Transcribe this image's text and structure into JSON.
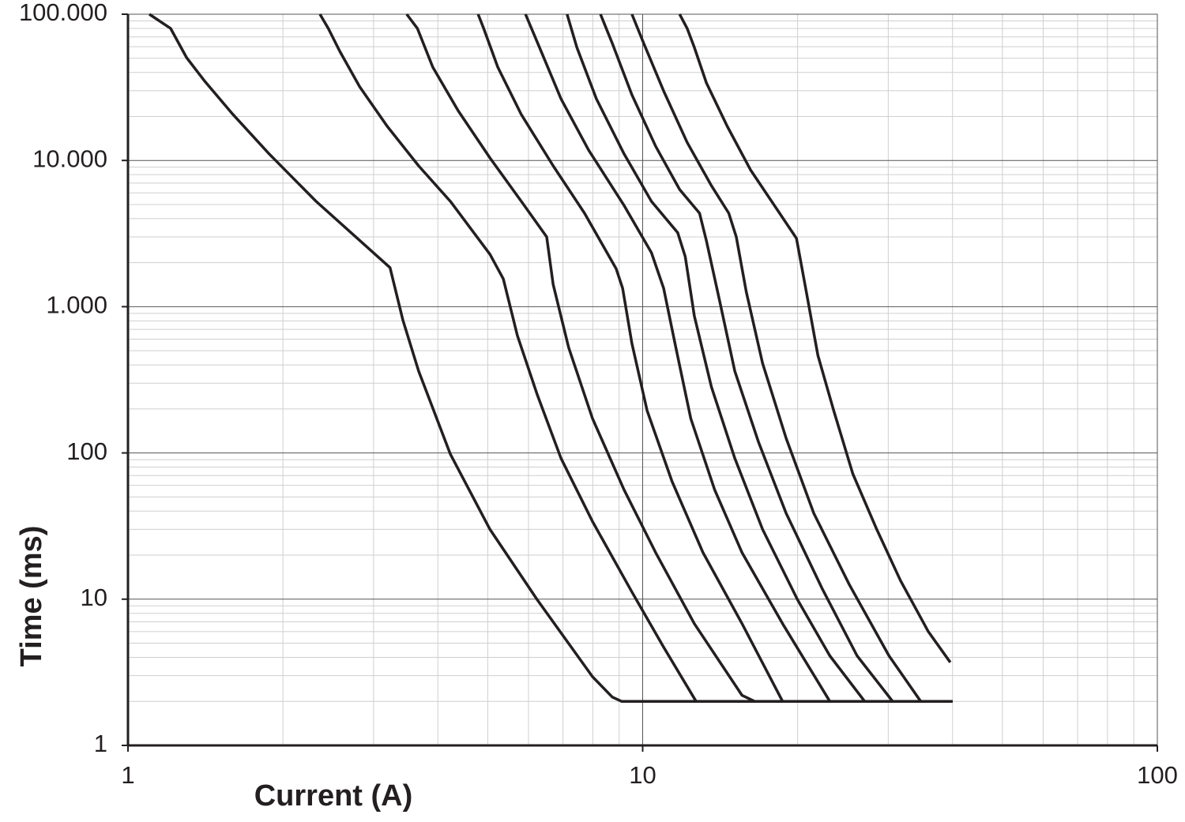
{
  "chart_data": {
    "type": "line",
    "x_label": "Current (A)",
    "y_label": "Time (ms)",
    "xscale": "log",
    "yscale": "log",
    "grid": true,
    "minor_grid": true,
    "xlim": [
      1,
      100
    ],
    "xticks": [
      1,
      10,
      100
    ],
    "ylim": [
      1,
      100000
    ],
    "yticks": [
      1,
      10,
      100,
      {
        "value": 1000,
        "label": "1.000"
      },
      {
        "value": 10000,
        "label": "10.000"
      },
      {
        "value": 100000,
        "label": "100.000"
      }
    ],
    "series": [
      {
        "color": "#231f20",
        "x": [
          1.1,
          1.21,
          1.3,
          1.41,
          1.6,
          1.88,
          2.32,
          3.23,
          3.42,
          3.67,
          4.23,
          5.05,
          6.24,
          7.99,
          8.73,
          9.1,
          40
        ],
        "values": [
          100000,
          80000,
          50500,
          34800,
          20600,
          11100,
          5250,
          1850,
          813,
          363,
          98,
          30,
          9.9,
          2.95,
          2.14,
          2,
          2
        ]
      },
      {
        "color": "#231f20",
        "x": [
          2.36,
          2.45,
          2.58,
          2.82,
          3.19,
          3.67,
          4.23,
          5.05,
          5.36,
          5.71,
          6.24,
          6.94,
          7.99,
          9.53,
          10.98,
          12.7,
          40
        ],
        "values": [
          100000,
          80000,
          55700,
          31900,
          17100,
          9190,
          5250,
          2280,
          1550,
          635,
          250,
          92,
          34,
          11.2,
          4.7,
          2,
          2
        ]
      },
      {
        "color": "#231f20",
        "x": [
          3.48,
          3.65,
          3.91,
          4.38,
          5.05,
          5.81,
          6.51,
          6.7,
          7.18,
          7.99,
          9.2,
          10.6,
          12.6,
          15.6,
          16.5,
          40
        ],
        "values": [
          100000,
          80000,
          43500,
          21900,
          10400,
          5250,
          3000,
          1420,
          526,
          172,
          56,
          20.8,
          6.8,
          2.2,
          2,
          2
        ]
      },
      {
        "color": "#231f20",
        "x": [
          4.79,
          4.91,
          5.23,
          5.81,
          6.7,
          7.71,
          8.88,
          9.14,
          9.53,
          10.2,
          11.4,
          13.1,
          15.6,
          18.7,
          40
        ],
        "values": [
          100000,
          80000,
          43500,
          20600,
          9190,
          4360,
          1820,
          1340,
          560,
          195,
          64,
          20.8,
          6.8,
          2,
          2
        ]
      },
      {
        "color": "#231f20",
        "x": [
          5.92,
          6.35,
          6.94,
          7.85,
          9.2,
          10.4,
          10.98,
          11.6,
          12.4,
          13.8,
          15.6,
          18.7,
          23.1,
          40
        ],
        "values": [
          100000,
          55700,
          26400,
          11800,
          4930,
          2340,
          1340,
          526,
          172,
          56,
          20.8,
          6.8,
          2,
          2
        ]
      },
      {
        "color": "#231f20",
        "x": [
          7.13,
          7.45,
          8.13,
          9.2,
          10.4,
          11.7,
          12.1,
          12.6,
          13.6,
          15.1,
          17.1,
          20.0,
          23.1,
          27.0,
          40
        ],
        "values": [
          100000,
          59300,
          26400,
          11100,
          5250,
          3200,
          2200,
          865,
          283,
          92,
          30,
          9.9,
          4.1,
          2,
          2
        ]
      },
      {
        "color": "#231f20",
        "x": [
          8.28,
          8.73,
          9.53,
          10.6,
          11.8,
          12.9,
          13.3,
          14.1,
          15.1,
          16.8,
          19.0,
          22.3,
          26.1,
          30.6,
          40
        ],
        "values": [
          100000,
          63100,
          28100,
          12500,
          6330,
          4360,
          2820,
          1110,
          363,
          118,
          38.7,
          11.9,
          4.1,
          2,
          2
        ]
      },
      {
        "color": "#231f20",
        "x": [
          9.53,
          10.05,
          10.98,
          12.2,
          13.6,
          14.7,
          15.2,
          15.9,
          17.1,
          19.0,
          21.5,
          25.2,
          30.1,
          34.7,
          40
        ],
        "values": [
          100000,
          63100,
          29900,
          13300,
          6730,
          4360,
          3000,
          1260,
          410,
          126,
          38.7,
          12.6,
          4.1,
          2,
          2
        ]
      },
      {
        "color": "#231f20",
        "x": [
          11.8,
          12.2,
          12.6,
          13.3,
          14.6,
          16.2,
          19.9,
          20.8,
          21.9,
          23.5,
          25.6,
          28.5,
          31.7,
          35.9,
          39.6
        ],
        "values": [
          100000,
          80000,
          59300,
          33900,
          17100,
          8630,
          2930,
          1260,
          465,
          195,
          72,
          30,
          13.4,
          6.0,
          3.7
        ]
      }
    ]
  }
}
